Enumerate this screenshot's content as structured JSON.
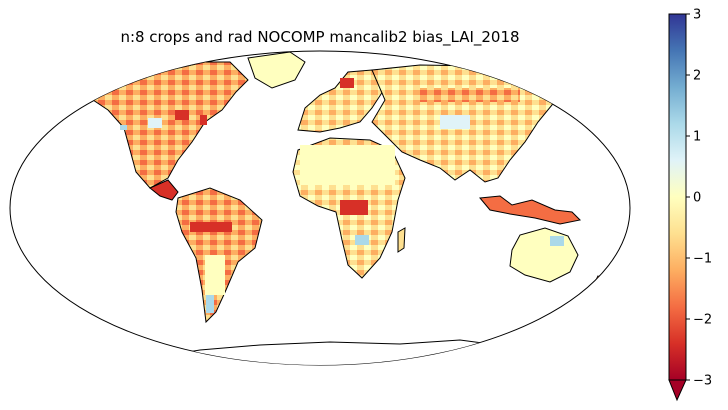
{
  "map": {
    "title": "n:8 crops and rad NOCOMP mancalib2 bias_LAI_2018",
    "projection": "Robinson",
    "variable": "bias_LAI_2018"
  },
  "colorbar": {
    "colormap": "RdYlBu",
    "vmin": -3,
    "vmax": 3,
    "extend": "min",
    "ticks": [
      {
        "value": 3,
        "label": "3"
      },
      {
        "value": 2,
        "label": "2"
      },
      {
        "value": 1,
        "label": "1"
      },
      {
        "value": 0,
        "label": "0"
      },
      {
        "value": -1,
        "label": "−1"
      },
      {
        "value": -2,
        "label": "−2"
      },
      {
        "value": -3,
        "label": "−3"
      }
    ],
    "colors": [
      "#a50026",
      "#d73027",
      "#f46d43",
      "#fdae61",
      "#fee090",
      "#ffffbf",
      "#e0f3f8",
      "#abd9e9",
      "#74add1",
      "#4575b4",
      "#313695"
    ]
  }
}
